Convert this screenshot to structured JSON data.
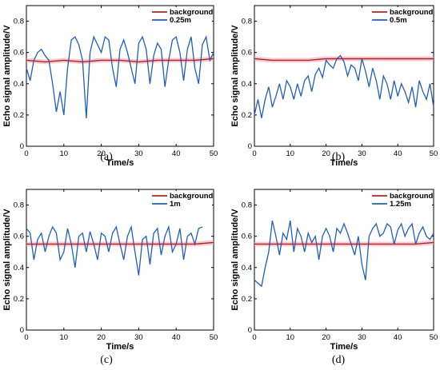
{
  "colors": {
    "background_series": "#b22222",
    "band": "#f4a6b6",
    "signal_series": "#1f5fbf"
  },
  "chart_data": [
    {
      "type": "line",
      "caption": "(a)",
      "xlabel": "Time/s",
      "ylabel": "Echo signal amplitude/V",
      "xlim": [
        0,
        50
      ],
      "ylim": [
        0,
        0.9
      ],
      "xticks": [
        0,
        10,
        20,
        30,
        40,
        50
      ],
      "yticks": [
        0,
        0.2,
        0.4,
        0.6,
        0.8
      ],
      "ytick_labels": [
        "0",
        "0.2",
        "0.4",
        "0.6",
        "0.8"
      ],
      "legend": "top-right",
      "series": [
        {
          "name": "background",
          "x": [
            0,
            5,
            10,
            15,
            20,
            25,
            30,
            35,
            40,
            45,
            50
          ],
          "y": [
            0.55,
            0.54,
            0.55,
            0.54,
            0.55,
            0.55,
            0.54,
            0.55,
            0.55,
            0.55,
            0.56
          ]
        },
        {
          "name": "0.25m",
          "x": [
            0,
            1,
            2,
            3,
            4,
            5,
            6,
            7,
            8,
            9,
            10,
            11,
            12,
            13,
            14,
            15,
            16,
            17,
            18,
            19,
            20,
            21,
            22,
            23,
            24,
            25,
            26,
            27,
            28,
            29,
            30,
            31,
            32,
            33,
            34,
            35,
            36,
            37,
            38,
            39,
            40,
            41,
            42,
            43,
            44,
            45,
            46,
            47,
            48,
            49,
            50
          ],
          "y": [
            0.5,
            0.42,
            0.55,
            0.6,
            0.62,
            0.58,
            0.55,
            0.4,
            0.22,
            0.35,
            0.2,
            0.5,
            0.68,
            0.7,
            0.65,
            0.55,
            0.18,
            0.6,
            0.7,
            0.65,
            0.6,
            0.7,
            0.68,
            0.5,
            0.38,
            0.62,
            0.68,
            0.6,
            0.5,
            0.4,
            0.66,
            0.7,
            0.62,
            0.4,
            0.58,
            0.66,
            0.62,
            0.38,
            0.55,
            0.68,
            0.7,
            0.6,
            0.42,
            0.62,
            0.7,
            0.5,
            0.4,
            0.65,
            0.7,
            0.55,
            0.6
          ]
        }
      ]
    },
    {
      "type": "line",
      "caption": "(b)",
      "xlabel": "Time/s",
      "ylabel": "Echo signal amplitude/V",
      "xlim": [
        0,
        50
      ],
      "ylim": [
        0,
        0.9
      ],
      "xticks": [
        0,
        10,
        20,
        30,
        40,
        50
      ],
      "yticks": [
        0,
        0.2,
        0.4,
        0.6,
        0.8
      ],
      "ytick_labels": [
        "0",
        "0.2",
        "0.4",
        "0.6",
        "0.8"
      ],
      "legend": "top-right",
      "series": [
        {
          "name": "background",
          "x": [
            0,
            5,
            10,
            15,
            20,
            25,
            30,
            35,
            40,
            45,
            50
          ],
          "y": [
            0.56,
            0.55,
            0.55,
            0.55,
            0.56,
            0.56,
            0.56,
            0.56,
            0.56,
            0.56,
            0.56
          ]
        },
        {
          "name": "0.5m",
          "x": [
            0,
            1,
            2,
            3,
            4,
            5,
            6,
            7,
            8,
            9,
            10,
            11,
            12,
            13,
            14,
            15,
            16,
            17,
            18,
            19,
            20,
            21,
            22,
            23,
            24,
            25,
            26,
            27,
            28,
            29,
            30,
            31,
            32,
            33,
            34,
            35,
            36,
            37,
            38,
            39,
            40,
            41,
            42,
            43,
            44,
            45,
            46,
            47,
            48,
            49,
            50
          ],
          "y": [
            0.2,
            0.3,
            0.18,
            0.3,
            0.38,
            0.25,
            0.32,
            0.4,
            0.3,
            0.42,
            0.38,
            0.3,
            0.4,
            0.32,
            0.42,
            0.45,
            0.35,
            0.46,
            0.5,
            0.44,
            0.55,
            0.52,
            0.5,
            0.56,
            0.58,
            0.54,
            0.45,
            0.52,
            0.5,
            0.42,
            0.56,
            0.48,
            0.38,
            0.5,
            0.42,
            0.3,
            0.45,
            0.4,
            0.3,
            0.42,
            0.32,
            0.4,
            0.35,
            0.28,
            0.38,
            0.25,
            0.42,
            0.35,
            0.3,
            0.4,
            0.25
          ]
        }
      ]
    },
    {
      "type": "line",
      "caption": "(c)",
      "xlabel": "Time/s",
      "ylabel": "Echo signal amplitude/V",
      "xlim": [
        0,
        50
      ],
      "ylim": [
        0,
        0.9
      ],
      "xticks": [
        0,
        10,
        20,
        30,
        40,
        50
      ],
      "yticks": [
        0,
        0.2,
        0.4,
        0.6,
        0.8
      ],
      "ytick_labels": [
        "0",
        "0.2",
        "0.4",
        "0.6",
        "0.8"
      ],
      "legend": "top-right",
      "series": [
        {
          "name": "background",
          "x": [
            0,
            5,
            10,
            15,
            20,
            25,
            30,
            35,
            40,
            45,
            50
          ],
          "y": [
            0.55,
            0.55,
            0.55,
            0.55,
            0.55,
            0.55,
            0.55,
            0.55,
            0.55,
            0.55,
            0.56
          ]
        },
        {
          "name": "1m",
          "x": [
            0,
            1,
            2,
            3,
            4,
            5,
            6,
            7,
            8,
            9,
            10,
            11,
            12,
            13,
            14,
            15,
            16,
            17,
            18,
            19,
            20,
            21,
            22,
            23,
            24,
            25,
            26,
            27,
            28,
            29,
            30,
            31,
            32,
            33,
            34,
            35,
            36,
            37,
            38,
            39,
            40,
            41,
            42,
            43,
            44,
            45,
            46,
            47
          ],
          "y": [
            0.65,
            0.62,
            0.45,
            0.58,
            0.62,
            0.5,
            0.6,
            0.66,
            0.62,
            0.45,
            0.5,
            0.65,
            0.55,
            0.4,
            0.6,
            0.62,
            0.5,
            0.63,
            0.55,
            0.45,
            0.62,
            0.6,
            0.5,
            0.62,
            0.66,
            0.55,
            0.45,
            0.6,
            0.66,
            0.5,
            0.35,
            0.58,
            0.6,
            0.42,
            0.62,
            0.65,
            0.48,
            0.6,
            0.66,
            0.5,
            0.55,
            0.65,
            0.45,
            0.6,
            0.62,
            0.55,
            0.65,
            0.66
          ]
        }
      ]
    },
    {
      "type": "line",
      "caption": "(d)",
      "xlabel": "Time/s",
      "ylabel": "Echo signal amplitude/V",
      "xlim": [
        0,
        50
      ],
      "ylim": [
        0,
        0.9
      ],
      "xticks": [
        0,
        10,
        20,
        30,
        40,
        50
      ],
      "yticks": [
        0,
        0.2,
        0.4,
        0.6,
        0.8
      ],
      "ytick_labels": [
        "0",
        "0.2",
        "0.4",
        "0.6",
        "0.8"
      ],
      "legend": "top-right",
      "series": [
        {
          "name": "background",
          "x": [
            0,
            5,
            10,
            15,
            20,
            25,
            30,
            35,
            40,
            45,
            50
          ],
          "y": [
            0.55,
            0.55,
            0.55,
            0.55,
            0.55,
            0.55,
            0.55,
            0.55,
            0.55,
            0.55,
            0.56
          ]
        },
        {
          "name": "1.25m",
          "x": [
            0,
            1,
            2,
            3,
            4,
            5,
            6,
            7,
            8,
            9,
            10,
            11,
            12,
            13,
            14,
            15,
            16,
            17,
            18,
            19,
            20,
            21,
            22,
            23,
            24,
            25,
            26,
            27,
            28,
            29,
            30,
            31,
            32,
            33,
            34,
            35,
            36,
            37,
            38,
            39,
            40,
            41,
            42,
            43,
            44,
            45,
            46,
            47,
            48,
            49,
            50
          ],
          "y": [
            0.32,
            0.3,
            0.28,
            0.4,
            0.5,
            0.7,
            0.6,
            0.48,
            0.62,
            0.58,
            0.7,
            0.5,
            0.65,
            0.6,
            0.5,
            0.62,
            0.56,
            0.6,
            0.45,
            0.6,
            0.65,
            0.6,
            0.5,
            0.65,
            0.62,
            0.68,
            0.62,
            0.55,
            0.48,
            0.6,
            0.42,
            0.32,
            0.6,
            0.65,
            0.68,
            0.6,
            0.62,
            0.68,
            0.66,
            0.55,
            0.64,
            0.68,
            0.6,
            0.65,
            0.68,
            0.55,
            0.62,
            0.66,
            0.6,
            0.58,
            0.62
          ]
        }
      ]
    }
  ]
}
